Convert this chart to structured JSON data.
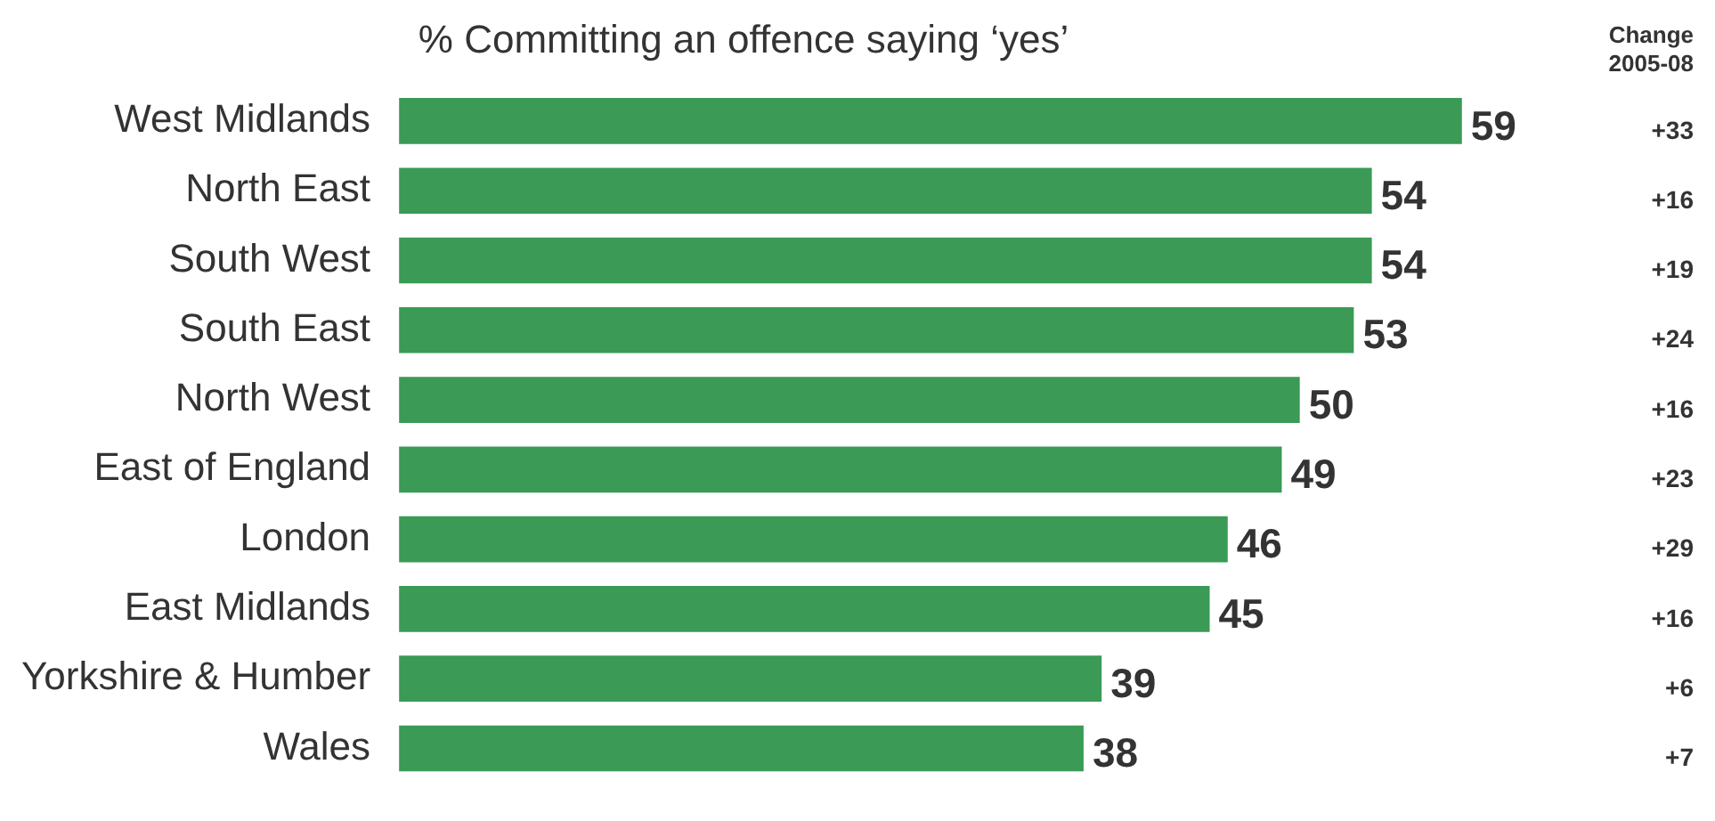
{
  "chart_data": {
    "type": "bar",
    "orientation": "horizontal",
    "title": "% Committing an offence saying ‘yes’",
    "categories": [
      "West Midlands",
      "North East",
      "South West",
      "South East",
      "North West",
      "East of England",
      "London",
      "East Midlands",
      "Yorkshire & Humber",
      "Wales"
    ],
    "values": [
      59,
      54,
      54,
      53,
      50,
      49,
      46,
      45,
      39,
      38
    ],
    "color": "#3a9a56",
    "data_labels": true,
    "legend": false,
    "tick_labels": "y",
    "annotations": [
      "Change 2005-08",
      "+33",
      "+16",
      "+19",
      "+24",
      "+16",
      "+23",
      "+29",
      "+16",
      "+6",
      "+7"
    ]
  }
}
